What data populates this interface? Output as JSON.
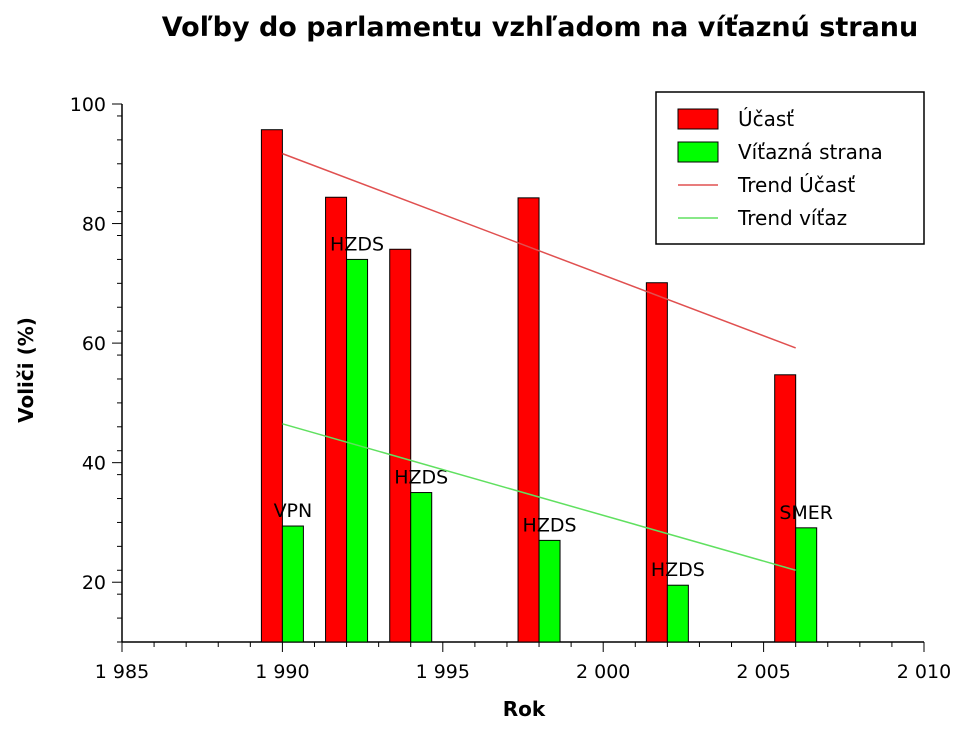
{
  "chart_data": {
    "type": "bar",
    "title": "Voľby do parlamentu vzhľadom na víťaznú stranu",
    "xlabel": "Rok",
    "ylabel": "Voliči (%)",
    "xlim": [
      1985,
      2010
    ],
    "ylim": [
      10,
      100
    ],
    "x_ticks": [
      1985,
      1990,
      1995,
      2000,
      2005,
      2010
    ],
    "x_tick_labels": [
      "1 985",
      "1 990",
      "1 995",
      "2 000",
      "2 005",
      "2 010"
    ],
    "y_ticks": [
      20,
      40,
      60,
      80,
      100
    ],
    "y_tick_labels": [
      "20",
      "40",
      "60",
      "80",
      "100"
    ],
    "x": [
      1990,
      1992,
      1994,
      1998,
      2002,
      2006
    ],
    "series": [
      {
        "name": "Účasť",
        "color": "#ff0000",
        "values": [
          95.7,
          84.4,
          75.7,
          84.3,
          70.1,
          54.7
        ]
      },
      {
        "name": "Víťazná strana",
        "color": "#00ff00",
        "values": [
          29.4,
          74.0,
          35.0,
          27.0,
          19.5,
          29.1
        ],
        "labels": [
          "VPN",
          "HZDS",
          "HZDS",
          "HZDS",
          "HZDS",
          "SMER"
        ]
      }
    ],
    "trends": [
      {
        "name": "Trend Účasť",
        "color": "#e05050",
        "x": [
          1990,
          2006
        ],
        "y": [
          91.7,
          59.2
        ]
      },
      {
        "name": "Trend víťaz",
        "color": "#60e060",
        "x": [
          1990,
          2006
        ],
        "y": [
          46.5,
          22.0
        ]
      }
    ],
    "legend_position": "top-right",
    "grid": false
  }
}
